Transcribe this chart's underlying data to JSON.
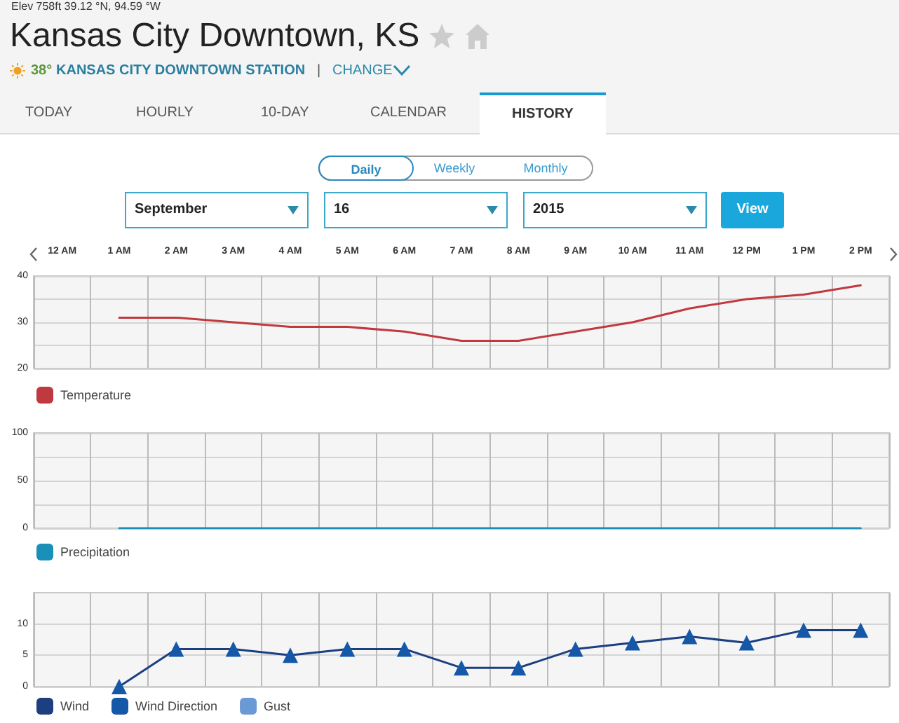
{
  "chart_data": [
    {
      "type": "line",
      "title": "Kansas City Downtown, KS",
      "annotations": [
        "Elev 758ft 39.12 °N, 94.59 °W",
        "38°",
        "KANSAS CITY DOWNTOWN STATION",
        "|",
        "CHANGE",
        "TODAY",
        "HOURLY",
        "10-DAY",
        "CALENDAR",
        "HISTORY",
        "Daily",
        "Weekly",
        "Monthly",
        "September",
        "16",
        "2015",
        "View"
      ],
      "categories": [
        "12 AM",
        "1 AM",
        "2 AM",
        "3 AM",
        "4 AM",
        "5 AM",
        "6 AM",
        "7 AM",
        "8 AM",
        "9 AM",
        "10 AM",
        "11 AM",
        "12 PM",
        "1 PM",
        "2 PM"
      ],
      "series": [
        {
          "name": "Temperature",
          "color": "#c0393f",
          "values": [
            null,
            31,
            31,
            30,
            29,
            29,
            28,
            26,
            26,
            28,
            30,
            33,
            35,
            36,
            38
          ]
        }
      ],
      "ylim": [
        20,
        40
      ],
      "yticks": [
        20,
        {
          "value": 25,
          "label": null
        },
        30,
        {
          "value": 35,
          "label": null
        },
        40
      ],
      "grid": true,
      "legend": "bottom left"
    },
    {
      "type": "line",
      "categories": [
        null,
        null,
        null,
        null,
        null,
        null,
        null,
        null,
        null,
        null,
        null,
        null,
        null,
        null,
        null
      ],
      "series": [
        {
          "name": "Precipitation",
          "color": "#1a8fb8",
          "values": [
            null,
            0,
            0,
            0,
            0,
            0,
            0,
            0,
            0,
            0,
            0,
            0,
            0,
            0,
            0
          ]
        }
      ],
      "ylim": [
        0,
        100
      ],
      "yticks": [
        0,
        {
          "value": 25,
          "label": null
        },
        50,
        {
          "value": 75,
          "label": null
        },
        100
      ],
      "grid": true,
      "legend": "bottom left",
      "tick_labels": "y"
    },
    {
      "type": "line",
      "categories": [
        null,
        null,
        null,
        null,
        null,
        null,
        null,
        null,
        null,
        null,
        null,
        null,
        null,
        null,
        null
      ],
      "series": [
        {
          "name": "Wind",
          "color": "#1c3f80",
          "values": [
            null,
            0,
            6,
            6,
            5,
            6,
            6,
            3,
            3,
            6,
            7,
            8,
            7,
            9,
            9
          ]
        },
        {
          "name": "Wind Direction",
          "type": "scatter",
          "marker": "triangle",
          "color": "#1558a8",
          "values": [
            null,
            0,
            6,
            6,
            5,
            6,
            6,
            3,
            3,
            6,
            7,
            8,
            7,
            9,
            9
          ]
        },
        {
          "name": "Gust",
          "color": "#6a9ad6",
          "values": [
            null,
            null,
            null,
            null,
            null,
            null,
            null,
            null,
            null,
            null,
            null,
            null,
            null,
            null,
            null
          ]
        }
      ],
      "ylim": [
        0,
        15
      ],
      "yticks": [
        0,
        5,
        10
      ],
      "grid": true,
      "legend": "bottom left",
      "tick_labels": "y"
    }
  ]
}
